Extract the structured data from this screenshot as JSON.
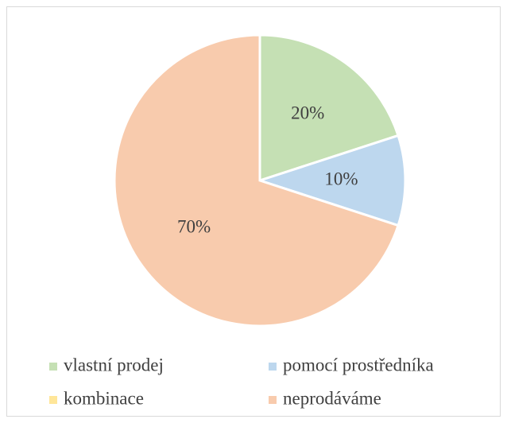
{
  "chart_data": {
    "type": "pie",
    "categories": [
      "vlastní prodej",
      "pomocí prostředníka",
      "kombinace",
      "neprodáváme"
    ],
    "values": [
      20,
      10,
      0,
      70
    ],
    "value_labels": [
      "20%",
      "10%",
      null,
      "70%"
    ],
    "colors": [
      "#c5e0b4",
      "#bdd7ee",
      "#ffe699",
      "#f8cbad"
    ],
    "legend": "bottom"
  }
}
